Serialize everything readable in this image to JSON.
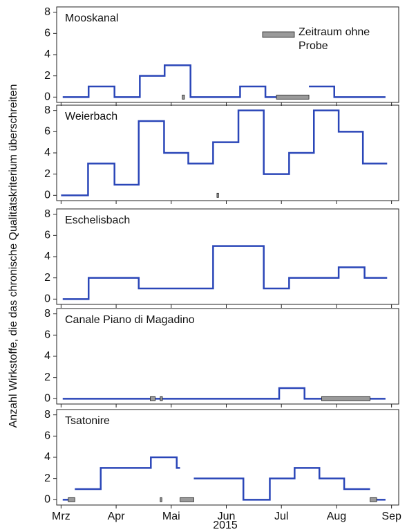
{
  "ylabel": "Anzahl Wirkstoffe, die das chronische Qualitätskriterium überschreiten",
  "xlabel": "2015",
  "chart_data": [
    {
      "type": "step",
      "title": "Mooskanal",
      "color": "#2a46b8",
      "legend": "Zeitraum ohne Probe",
      "x": [
        3.03,
        3.5,
        3.97,
        4.43,
        4.88,
        5.35,
        6.25,
        6.71,
        6.91,
        7.2,
        7.5,
        7.96,
        8.89
      ],
      "values": [
        0,
        1,
        0,
        2,
        3,
        0,
        1,
        0,
        0,
        null,
        1,
        0,
        0
      ],
      "gaps": [
        [
          5.2,
          5.24
        ],
        [
          6.91,
          7.5
        ]
      ],
      "xlim": [
        2.92,
        9.13
      ],
      "xticks": [
        3,
        4,
        5,
        6,
        7,
        8,
        9
      ],
      "ylim": [
        -0.5,
        8.5
      ],
      "yticks": [
        0,
        2,
        4,
        6,
        8
      ]
    },
    {
      "type": "step",
      "title": "Weierbach",
      "color": "#2a46b8",
      "x": [
        3.0,
        3.49,
        3.97,
        4.41,
        4.87,
        5.31,
        5.76,
        6.22,
        6.68,
        7.14,
        7.59,
        8.04,
        8.48,
        8.92
      ],
      "values": [
        0,
        3,
        1,
        7,
        4,
        3,
        5,
        8,
        2,
        4,
        8,
        6,
        3,
        3
      ],
      "gaps": [
        [
          5.83,
          5.86
        ]
      ],
      "xlim": [
        2.92,
        9.13
      ],
      "xticks": [
        3,
        4,
        5,
        6,
        7,
        8,
        9
      ],
      "ylim": [
        -0.5,
        8.5
      ],
      "yticks": [
        0,
        2,
        4,
        6,
        8
      ]
    },
    {
      "type": "step",
      "title": "Eschelisbach",
      "color": "#2a46b8",
      "x": [
        3.03,
        3.5,
        4.41,
        5.76,
        6.68,
        7.14,
        8.04,
        8.51,
        8.92
      ],
      "values": [
        0,
        2,
        1,
        5,
        1,
        2,
        3,
        2,
        2
      ],
      "gaps": [],
      "xlim": [
        2.92,
        9.13
      ],
      "xticks": [
        3,
        4,
        5,
        6,
        7,
        8,
        9
      ],
      "ylim": [
        -0.5,
        8.5
      ],
      "yticks": [
        0,
        2,
        4,
        6,
        8
      ]
    },
    {
      "type": "step",
      "title": "Canale Piano di Magadino",
      "color": "#2a46b8",
      "x": [
        3.03,
        6.96,
        7.42,
        8.89
      ],
      "values": [
        0,
        1,
        0,
        0
      ],
      "gaps": [
        [
          4.62,
          4.71
        ],
        [
          4.8,
          4.84
        ],
        [
          7.73,
          8.61
        ]
      ],
      "xlim": [
        2.92,
        9.13
      ],
      "xticks": [
        3,
        4,
        5,
        6,
        7,
        8,
        9
      ],
      "ylim": [
        -0.5,
        8.5
      ],
      "yticks": [
        0,
        2,
        4,
        6,
        8
      ]
    },
    {
      "type": "step",
      "title": "Tsatonire",
      "color": "#2a46b8",
      "x": [
        3.03,
        3.13,
        3.19,
        3.25,
        3.72,
        4.63,
        5.1,
        5.16,
        5.28,
        5.41,
        6.31,
        6.79,
        7.24,
        7.69,
        8.14,
        8.61,
        8.67,
        8.73,
        8.89
      ],
      "values": [
        0,
        0,
        null,
        1,
        3,
        4,
        3,
        3,
        null,
        2,
        0,
        2,
        3,
        2,
        1,
        1,
        null,
        0,
        0
      ],
      "gaps": [
        [
          3.13,
          3.25
        ],
        [
          4.8,
          4.83
        ],
        [
          5.16,
          5.41
        ],
        [
          8.61,
          8.73
        ]
      ],
      "xlim": [
        2.92,
        9.13
      ],
      "xticks": [
        {
          "value": 3,
          "label": "Mrz"
        },
        {
          "value": 4,
          "label": "Apr"
        },
        {
          "value": 5,
          "label": "Mai"
        },
        {
          "value": 6,
          "label": "Jun"
        },
        {
          "value": 7,
          "label": "Jul"
        },
        {
          "value": 8,
          "label": "Aug"
        },
        {
          "value": 9,
          "label": "Sep"
        }
      ],
      "ylim": [
        -0.5,
        8.5
      ],
      "yticks": [
        0,
        2,
        4,
        6,
        8
      ]
    }
  ]
}
